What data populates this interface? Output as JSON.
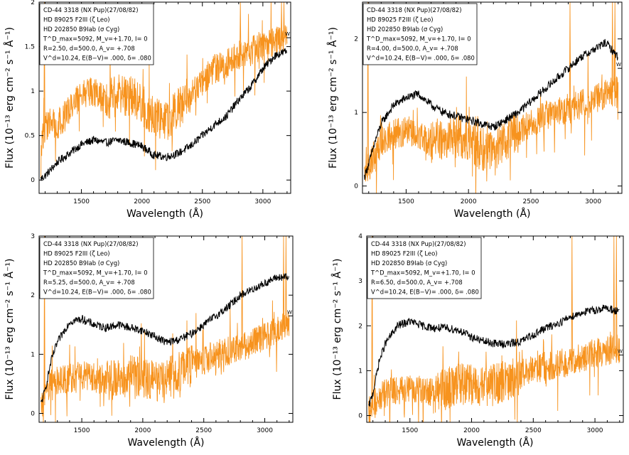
{
  "chart_data": [
    {
      "type": "line",
      "xlabel": "Wavelength (Å)",
      "ylabel": "Flux (10⁻¹³ erg cm⁻² s⁻¹ Å⁻¹)",
      "xlim": [
        1150,
        3230
      ],
      "ylim": [
        -0.15,
        2.0
      ],
      "xticks": [
        1500,
        2000,
        2500,
        3000
      ],
      "yticks": [
        0,
        0.5,
        1,
        1.5,
        2
      ],
      "ytick_labels": [
        "0",
        "0.5",
        "1",
        "1.5",
        "2"
      ],
      "legend_lines": [
        "CD-44 3318 (NX Pup)(27/08/82)",
        "HD 89025 F2III (ζ Leo)",
        "HD 202850 B9Iab (σ Cyg)",
        "T^D_max=5092, M_v=+1.70, I= 0",
        "R=2.50, d=500.0, A_v= +.708",
        "V^d=10.24, E(B−V)= .000, δ= .080"
      ],
      "w_marker_y": 1.6,
      "series": [
        {
          "color": "#000000",
          "x": [
            1150,
            1200,
            1250,
            1300,
            1400,
            1500,
            1600,
            1700,
            1800,
            1900,
            2000,
            2100,
            2200,
            2300,
            2400,
            2500,
            2600,
            2700,
            2800,
            2900,
            3000,
            3100,
            3200
          ],
          "y": [
            0.0,
            0.05,
            0.12,
            0.2,
            0.3,
            0.4,
            0.45,
            0.42,
            0.45,
            0.42,
            0.38,
            0.28,
            0.26,
            0.3,
            0.38,
            0.5,
            0.62,
            0.72,
            0.9,
            1.05,
            1.25,
            1.4,
            1.45
          ]
        },
        {
          "color": "#f7931e",
          "x": [
            1150,
            1200,
            1250,
            1300,
            1400,
            1500,
            1600,
            1700,
            1800,
            1900,
            2000,
            2100,
            2200,
            2300,
            2400,
            2500,
            2600,
            2700,
            2800,
            2900,
            3000,
            3100,
            3200
          ],
          "y": [
            0.3,
            0.6,
            0.65,
            0.6,
            0.8,
            0.95,
            1.0,
            0.9,
            0.95,
            0.95,
            0.85,
            0.7,
            0.65,
            0.8,
            0.95,
            1.1,
            1.25,
            1.3,
            1.4,
            1.45,
            1.5,
            1.55,
            1.6
          ]
        }
      ]
    },
    {
      "type": "line",
      "xlabel": "Wavelength (Å)",
      "ylabel": "Flux (10⁻¹³ erg cm⁻² s⁻¹ Å⁻¹)",
      "xlim": [
        1150,
        3230
      ],
      "ylim": [
        -0.1,
        2.5
      ],
      "xticks": [
        1500,
        2000,
        2500,
        3000
      ],
      "yticks": [
        0,
        1,
        2
      ],
      "ytick_labels": [
        "0",
        "1",
        "2"
      ],
      "legend_lines": [
        "CD-44 3318 (NX Pup)(27/08/82)",
        "HD 89025 F2III (ζ Leo)",
        "HD 202850 B9Iab (σ Cyg)",
        "T^D_max=5092, M_v=+1.70, I= 0",
        "R=4.00, d=500.0, A_v= +.708",
        "V^d=10.24, E(B−V)= .000, δ= .080"
      ],
      "w_marker_y": 1.6,
      "series": [
        {
          "color": "#000000",
          "x": [
            1150,
            1200,
            1250,
            1300,
            1400,
            1500,
            1600,
            1700,
            1800,
            1900,
            2000,
            2100,
            2200,
            2300,
            2400,
            2500,
            2600,
            2700,
            2800,
            2900,
            3000,
            3100,
            3200
          ],
          "y": [
            0.05,
            0.3,
            0.6,
            0.85,
            1.1,
            1.2,
            1.25,
            1.1,
            1.0,
            0.95,
            0.9,
            0.85,
            0.8,
            0.9,
            1.0,
            1.15,
            1.3,
            1.45,
            1.6,
            1.75,
            1.85,
            1.95,
            1.75
          ]
        },
        {
          "color": "#f7931e",
          "x": [
            1150,
            1200,
            1250,
            1300,
            1400,
            1500,
            1600,
            1700,
            1800,
            1900,
            2000,
            2100,
            2200,
            2300,
            2400,
            2500,
            2600,
            2700,
            2800,
            2900,
            3000,
            3100,
            3200
          ],
          "y": [
            0.1,
            0.25,
            0.45,
            0.6,
            0.7,
            0.75,
            0.7,
            0.6,
            0.65,
            0.7,
            0.6,
            0.5,
            0.5,
            0.6,
            0.75,
            0.85,
            0.95,
            1.0,
            1.05,
            1.1,
            1.15,
            1.25,
            1.3
          ]
        }
      ]
    },
    {
      "type": "line",
      "xlabel": "Wavelength (Å)",
      "ylabel": "Flux (10⁻¹³ erg cm⁻² s⁻¹ Å⁻¹)",
      "xlim": [
        1150,
        3230
      ],
      "ylim": [
        -0.15,
        3.0
      ],
      "xticks": [
        1500,
        2000,
        2500,
        3000
      ],
      "yticks": [
        0,
        1,
        2,
        3
      ],
      "ytick_labels": [
        "0",
        "1",
        "2",
        "3"
      ],
      "legend_lines": [
        "CD-44 3318 (NX Pup)(27/08/82)",
        "HD 89025 F2III (ζ Leo)",
        "HD 202850 B9Iab (σ Cyg)",
        "T^D_max=5092, M_v=+1.70, I= 0",
        "R=5.25, d=500.0, A_v= +.708",
        "V^d=10.24, E(B−V)= .000, δ= .080"
      ],
      "w_marker_y": 1.65,
      "series": [
        {
          "color": "#000000",
          "x": [
            1150,
            1200,
            1250,
            1300,
            1400,
            1500,
            1600,
            1700,
            1800,
            1900,
            2000,
            2100,
            2200,
            2300,
            2400,
            2500,
            2600,
            2700,
            2800,
            2900,
            3000,
            3100,
            3200
          ],
          "y": [
            0.05,
            0.4,
            0.9,
            1.2,
            1.55,
            1.6,
            1.5,
            1.45,
            1.5,
            1.45,
            1.4,
            1.3,
            1.2,
            1.25,
            1.35,
            1.5,
            1.65,
            1.8,
            2.0,
            2.1,
            2.2,
            2.3,
            2.3
          ]
        },
        {
          "color": "#f7931e",
          "x": [
            1150,
            1200,
            1250,
            1300,
            1400,
            1500,
            1600,
            1700,
            1800,
            1900,
            2000,
            2100,
            2200,
            2300,
            2400,
            2500,
            2600,
            2700,
            2800,
            2900,
            3000,
            3100,
            3200
          ],
          "y": [
            0.05,
            0.3,
            0.5,
            0.55,
            0.6,
            0.65,
            0.6,
            0.55,
            0.6,
            0.65,
            0.6,
            0.55,
            0.6,
            0.7,
            0.8,
            0.9,
            1.0,
            1.05,
            1.1,
            1.2,
            1.3,
            1.4,
            1.5
          ]
        }
      ]
    },
    {
      "type": "line",
      "xlabel": "Wavelength (Å)",
      "ylabel": "Flux (10⁻¹³ erg cm⁻² s⁻¹ Å⁻¹)",
      "xlim": [
        1150,
        3230
      ],
      "ylim": [
        -0.15,
        4.0
      ],
      "xticks": [
        1500,
        2000,
        2500,
        3000
      ],
      "yticks": [
        0,
        1,
        2,
        3,
        4
      ],
      "ytick_labels": [
        "0",
        "1",
        "2",
        "3",
        "4"
      ],
      "legend_lines": [
        "CD-44 3318 (NX Pup)(27/08/82)",
        "HD 89025 F2III (ζ Leo)",
        "HD 202850 B9Iab (σ Cyg)",
        "T^D_max=5092, M_v=+1.70, I= 0",
        "R=6.50, d=500.0, A_v= +.708",
        "V^d=10.24, E(B−V)= .000, δ= .080"
      ],
      "w_marker_y": 1.35,
      "series": [
        {
          "color": "#000000",
          "x": [
            1150,
            1200,
            1250,
            1300,
            1400,
            1500,
            1600,
            1700,
            1800,
            1900,
            2000,
            2100,
            2200,
            2300,
            2400,
            2500,
            2600,
            2700,
            2800,
            2900,
            3000,
            3100,
            3200
          ],
          "y": [
            0.05,
            0.5,
            1.2,
            1.6,
            2.0,
            2.1,
            2.0,
            1.95,
            1.95,
            1.9,
            1.75,
            1.65,
            1.6,
            1.6,
            1.65,
            1.8,
            1.95,
            2.05,
            2.2,
            2.3,
            2.35,
            2.4,
            2.3
          ]
        },
        {
          "color": "#f7931e",
          "x": [
            1150,
            1200,
            1250,
            1300,
            1400,
            1500,
            1600,
            1700,
            1800,
            1900,
            2000,
            2100,
            2200,
            2300,
            2400,
            2500,
            2600,
            2700,
            2800,
            2900,
            3000,
            3100,
            3200
          ],
          "y": [
            0.05,
            0.2,
            0.4,
            0.5,
            0.55,
            0.6,
            0.55,
            0.5,
            0.6,
            0.7,
            0.7,
            0.65,
            0.7,
            0.8,
            0.95,
            1.0,
            1.1,
            1.15,
            1.2,
            1.3,
            1.4,
            1.45,
            1.5
          ]
        }
      ]
    }
  ]
}
